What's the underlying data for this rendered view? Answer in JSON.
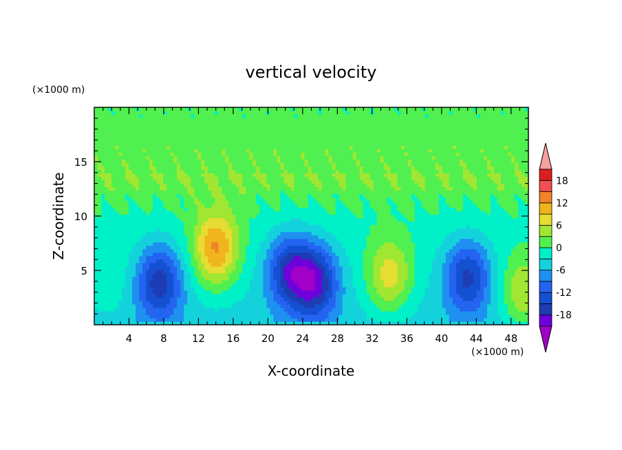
{
  "chart_data": {
    "type": "heatmap",
    "title": "vertical velocity",
    "xlabel": "X-coordinate",
    "ylabel": "Z-coordinate",
    "x_unit": "(×1000 m)",
    "y_unit": "(×1000 m)",
    "xlim": [
      0,
      50
    ],
    "ylim": [
      0,
      20
    ],
    "x_ticks": [
      "4",
      "8",
      "12",
      "16",
      "20",
      "24",
      "28",
      "32",
      "36",
      "40",
      "44",
      "48"
    ],
    "y_ticks": [
      "5",
      "10",
      "15"
    ],
    "colorbar": {
      "levels": [
        -21,
        -18,
        -15,
        -12,
        -9,
        -6,
        -3,
        0,
        3,
        6,
        9,
        12,
        15,
        18,
        21
      ],
      "labels": [
        "-18",
        "-12",
        "-6",
        "0",
        "6",
        "12",
        "18"
      ],
      "colors": [
        "#a000c8",
        "#6e00dc",
        "#1e3cb4",
        "#1450d2",
        "#2364f0",
        "#1e90f0",
        "#14d2dc",
        "#00f0c8",
        "#50f050",
        "#a0e632",
        "#e6dc32",
        "#f0b41e",
        "#f08228",
        "#f05050",
        "#dc1e1e",
        "#f5a0a0"
      ]
    },
    "cells": [
      {
        "x": 1.5,
        "z": 4.0,
        "w": 2.0
      },
      {
        "x": 7.5,
        "z": 4.0,
        "w": -14.0
      },
      {
        "x": 14.0,
        "z": 7.0,
        "w": 14.0
      },
      {
        "x": 22.5,
        "z": 5.0,
        "w": -14.0
      },
      {
        "x": 25.5,
        "z": 4.0,
        "w": -15.0
      },
      {
        "x": 34.0,
        "z": 4.5,
        "w": 10.0
      },
      {
        "x": 43.0,
        "z": 4.5,
        "w": -13.0
      },
      {
        "x": 49.5,
        "z": 3.0,
        "w": 9.0
      }
    ]
  }
}
